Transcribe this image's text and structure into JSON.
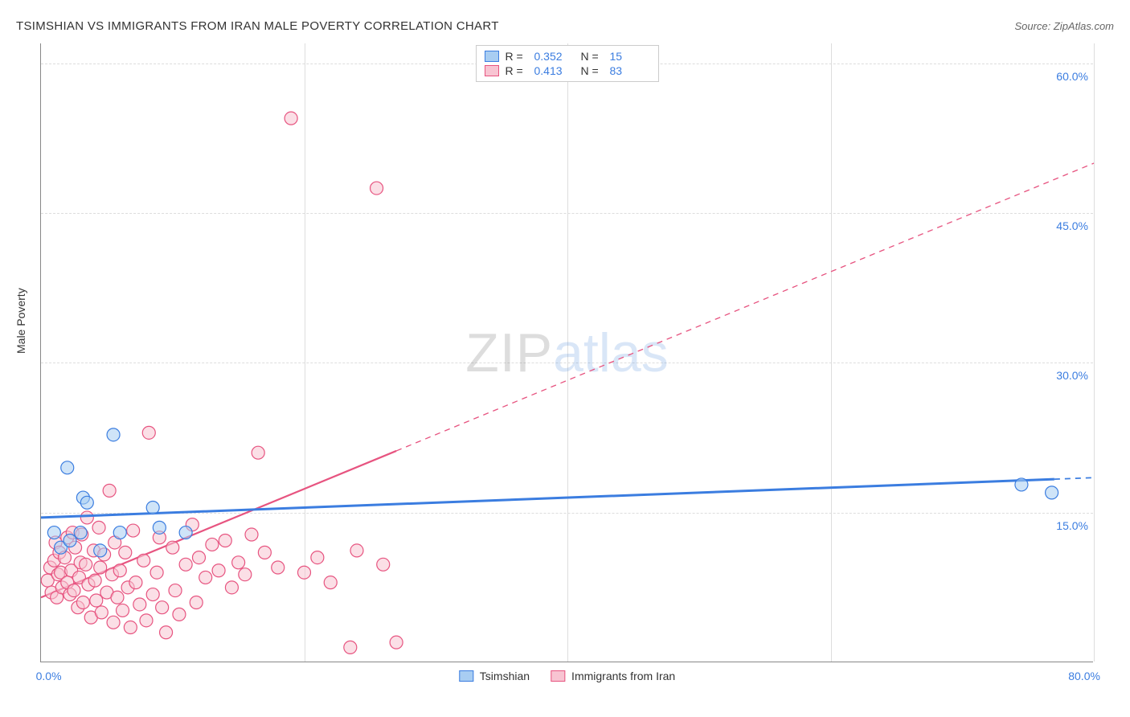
{
  "title": "TSIMSHIAN VS IMMIGRANTS FROM IRAN MALE POVERTY CORRELATION CHART",
  "source": "Source: ZipAtlas.com",
  "y_axis_label": "Male Poverty",
  "watermark": {
    "part1": "ZIP",
    "part2": "atlas"
  },
  "chart": {
    "type": "scatter",
    "xlim": [
      0,
      80
    ],
    "ylim": [
      0,
      62
    ],
    "x_ticks": [
      0,
      20,
      40,
      60,
      80
    ],
    "x_tick_labels": [
      "0.0%",
      "",
      "",
      "",
      "80.0%"
    ],
    "y_ticks": [
      15,
      30,
      45,
      60
    ],
    "y_tick_labels": [
      "15.0%",
      "30.0%",
      "45.0%",
      "60.0%"
    ],
    "background_color": "#ffffff",
    "grid_color": "#dddddd",
    "axis_color": "#888888",
    "tick_label_color": "#3b7de0",
    "tick_fontsize": 14,
    "title_fontsize": 15,
    "marker_radius": 8,
    "marker_opacity": 0.55,
    "marker_stroke_width": 1.2,
    "series": [
      {
        "name": "Tsimshian",
        "color_fill": "#a8cdf2",
        "color_stroke": "#3b7de0",
        "R": "0.352",
        "N": "15",
        "points": [
          [
            1.0,
            13.0
          ],
          [
            1.5,
            11.5
          ],
          [
            2.0,
            19.5
          ],
          [
            2.2,
            12.2
          ],
          [
            3.0,
            13.0
          ],
          [
            3.2,
            16.5
          ],
          [
            3.5,
            16.0
          ],
          [
            4.5,
            11.2
          ],
          [
            5.5,
            22.8
          ],
          [
            6.0,
            13.0
          ],
          [
            8.5,
            15.5
          ],
          [
            9.0,
            13.5
          ],
          [
            11.0,
            13.0
          ],
          [
            74.5,
            17.8
          ],
          [
            76.8,
            17.0
          ]
        ],
        "trend": {
          "x1": 0,
          "y1": 14.5,
          "x2": 80,
          "y2": 18.5,
          "solid_until_x": 77,
          "width": 3
        }
      },
      {
        "name": "Immigrants from Iran",
        "color_fill": "#f8c4d2",
        "color_stroke": "#e75480",
        "R": "0.413",
        "N": "83",
        "points": [
          [
            0.5,
            8.2
          ],
          [
            0.7,
            9.5
          ],
          [
            0.8,
            7.0
          ],
          [
            1.0,
            10.2
          ],
          [
            1.1,
            12.0
          ],
          [
            1.2,
            6.5
          ],
          [
            1.3,
            8.8
          ],
          [
            1.4,
            11.0
          ],
          [
            1.5,
            9.0
          ],
          [
            1.6,
            7.5
          ],
          [
            1.8,
            10.5
          ],
          [
            2.0,
            8.0
          ],
          [
            2.0,
            12.5
          ],
          [
            2.2,
            6.8
          ],
          [
            2.3,
            9.2
          ],
          [
            2.4,
            13.0
          ],
          [
            2.5,
            7.2
          ],
          [
            2.6,
            11.5
          ],
          [
            2.8,
            5.5
          ],
          [
            2.9,
            8.5
          ],
          [
            3.0,
            10.0
          ],
          [
            3.1,
            12.8
          ],
          [
            3.2,
            6.0
          ],
          [
            3.4,
            9.8
          ],
          [
            3.5,
            14.5
          ],
          [
            3.6,
            7.8
          ],
          [
            3.8,
            4.5
          ],
          [
            4.0,
            11.2
          ],
          [
            4.1,
            8.2
          ],
          [
            4.2,
            6.2
          ],
          [
            4.4,
            13.5
          ],
          [
            4.5,
            9.5
          ],
          [
            4.6,
            5.0
          ],
          [
            4.8,
            10.8
          ],
          [
            5.0,
            7.0
          ],
          [
            5.2,
            17.2
          ],
          [
            5.4,
            8.8
          ],
          [
            5.5,
            4.0
          ],
          [
            5.6,
            12.0
          ],
          [
            5.8,
            6.5
          ],
          [
            6.0,
            9.2
          ],
          [
            6.2,
            5.2
          ],
          [
            6.4,
            11.0
          ],
          [
            6.6,
            7.5
          ],
          [
            6.8,
            3.5
          ],
          [
            7.0,
            13.2
          ],
          [
            7.2,
            8.0
          ],
          [
            7.5,
            5.8
          ],
          [
            7.8,
            10.2
          ],
          [
            8.0,
            4.2
          ],
          [
            8.2,
            23.0
          ],
          [
            8.5,
            6.8
          ],
          [
            8.8,
            9.0
          ],
          [
            9.0,
            12.5
          ],
          [
            9.2,
            5.5
          ],
          [
            9.5,
            3.0
          ],
          [
            10.0,
            11.5
          ],
          [
            10.2,
            7.2
          ],
          [
            10.5,
            4.8
          ],
          [
            11.0,
            9.8
          ],
          [
            11.5,
            13.8
          ],
          [
            11.8,
            6.0
          ],
          [
            12.0,
            10.5
          ],
          [
            12.5,
            8.5
          ],
          [
            13.0,
            11.8
          ],
          [
            13.5,
            9.2
          ],
          [
            14.0,
            12.2
          ],
          [
            14.5,
            7.5
          ],
          [
            15.0,
            10.0
          ],
          [
            15.5,
            8.8
          ],
          [
            16.0,
            12.8
          ],
          [
            16.5,
            21.0
          ],
          [
            17.0,
            11.0
          ],
          [
            18.0,
            9.5
          ],
          [
            19.0,
            54.5
          ],
          [
            20.0,
            9.0
          ],
          [
            21.0,
            10.5
          ],
          [
            22.0,
            8.0
          ],
          [
            23.5,
            1.5
          ],
          [
            24.0,
            11.2
          ],
          [
            25.5,
            47.5
          ],
          [
            26.0,
            9.8
          ],
          [
            27.0,
            2.0
          ]
        ],
        "trend": {
          "x1": 0,
          "y1": 6.5,
          "x2": 80,
          "y2": 50.0,
          "solid_until_x": 27,
          "width": 2.2
        }
      }
    ]
  },
  "legend_top_labels": {
    "R": "R =",
    "N": "N ="
  },
  "legend_bottom": [
    {
      "label": "Tsimshian",
      "fill": "#a8cdf2",
      "stroke": "#3b7de0"
    },
    {
      "label": "Immigrants from Iran",
      "fill": "#f8c4d2",
      "stroke": "#e75480"
    }
  ]
}
